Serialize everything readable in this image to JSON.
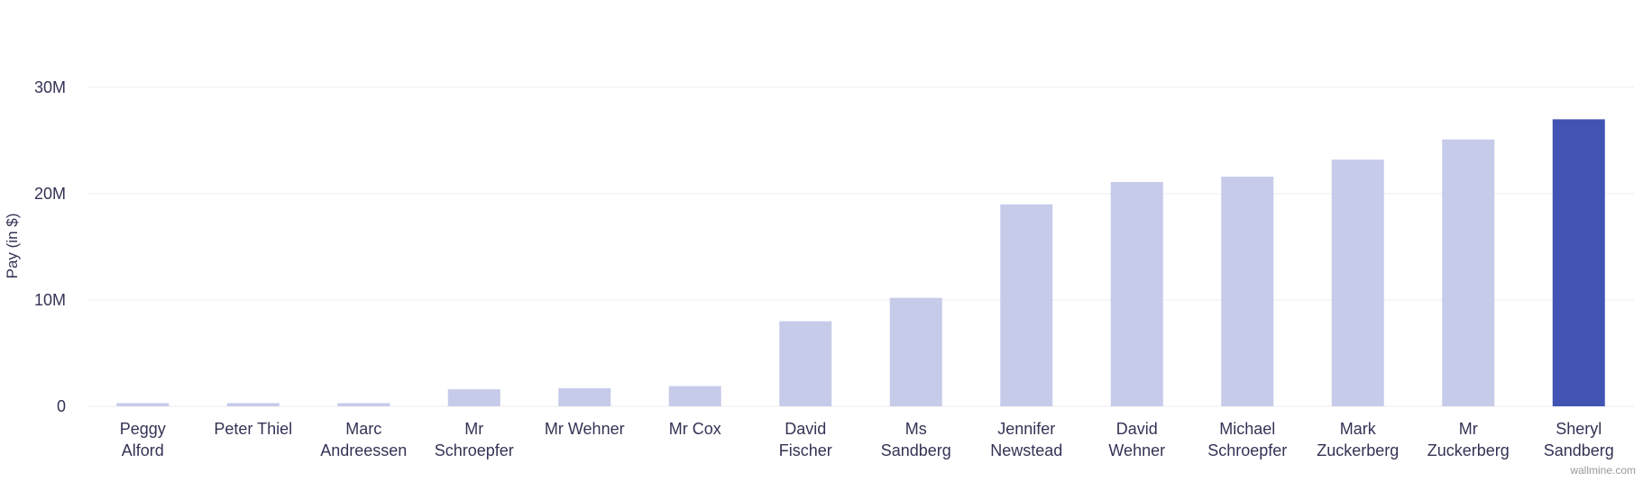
{
  "chart_data": {
    "type": "bar",
    "ylabel": "Pay (in $)",
    "ylim": [
      0,
      30000000
    ],
    "yticks": [
      {
        "value": 0,
        "label": "0"
      },
      {
        "value": 10000000,
        "label": "10M"
      },
      {
        "value": 20000000,
        "label": "20M"
      },
      {
        "value": 30000000,
        "label": "30M"
      }
    ],
    "grid": true,
    "categories": [
      [
        "Peggy",
        "Alford"
      ],
      [
        "Peter Thiel"
      ],
      [
        "Marc",
        "Andreessen"
      ],
      [
        "Mr",
        "Schroepfer"
      ],
      [
        "Mr Wehner"
      ],
      [
        "Mr Cox"
      ],
      [
        "David",
        "Fischer"
      ],
      [
        "Ms",
        "Sandberg"
      ],
      [
        "Jennifer",
        "Newstead"
      ],
      [
        "David",
        "Wehner"
      ],
      [
        "Michael",
        "Schroepfer"
      ],
      [
        "Mark",
        "Zuckerberg"
      ],
      [
        "Mr",
        "Zuckerberg"
      ],
      [
        "Sheryl",
        "Sandberg"
      ]
    ],
    "values": [
      300000,
      300000,
      300000,
      1600000,
      1700000,
      1900000,
      8000000,
      10200000,
      19000000,
      21100000,
      21600000,
      23200000,
      25100000,
      27000000
    ],
    "highlight_index": 13,
    "colors": {
      "bar": "#c7cbea",
      "highlight": "#4153b3",
      "grid": "#ececf2"
    }
  },
  "credit": "wallmine.com"
}
